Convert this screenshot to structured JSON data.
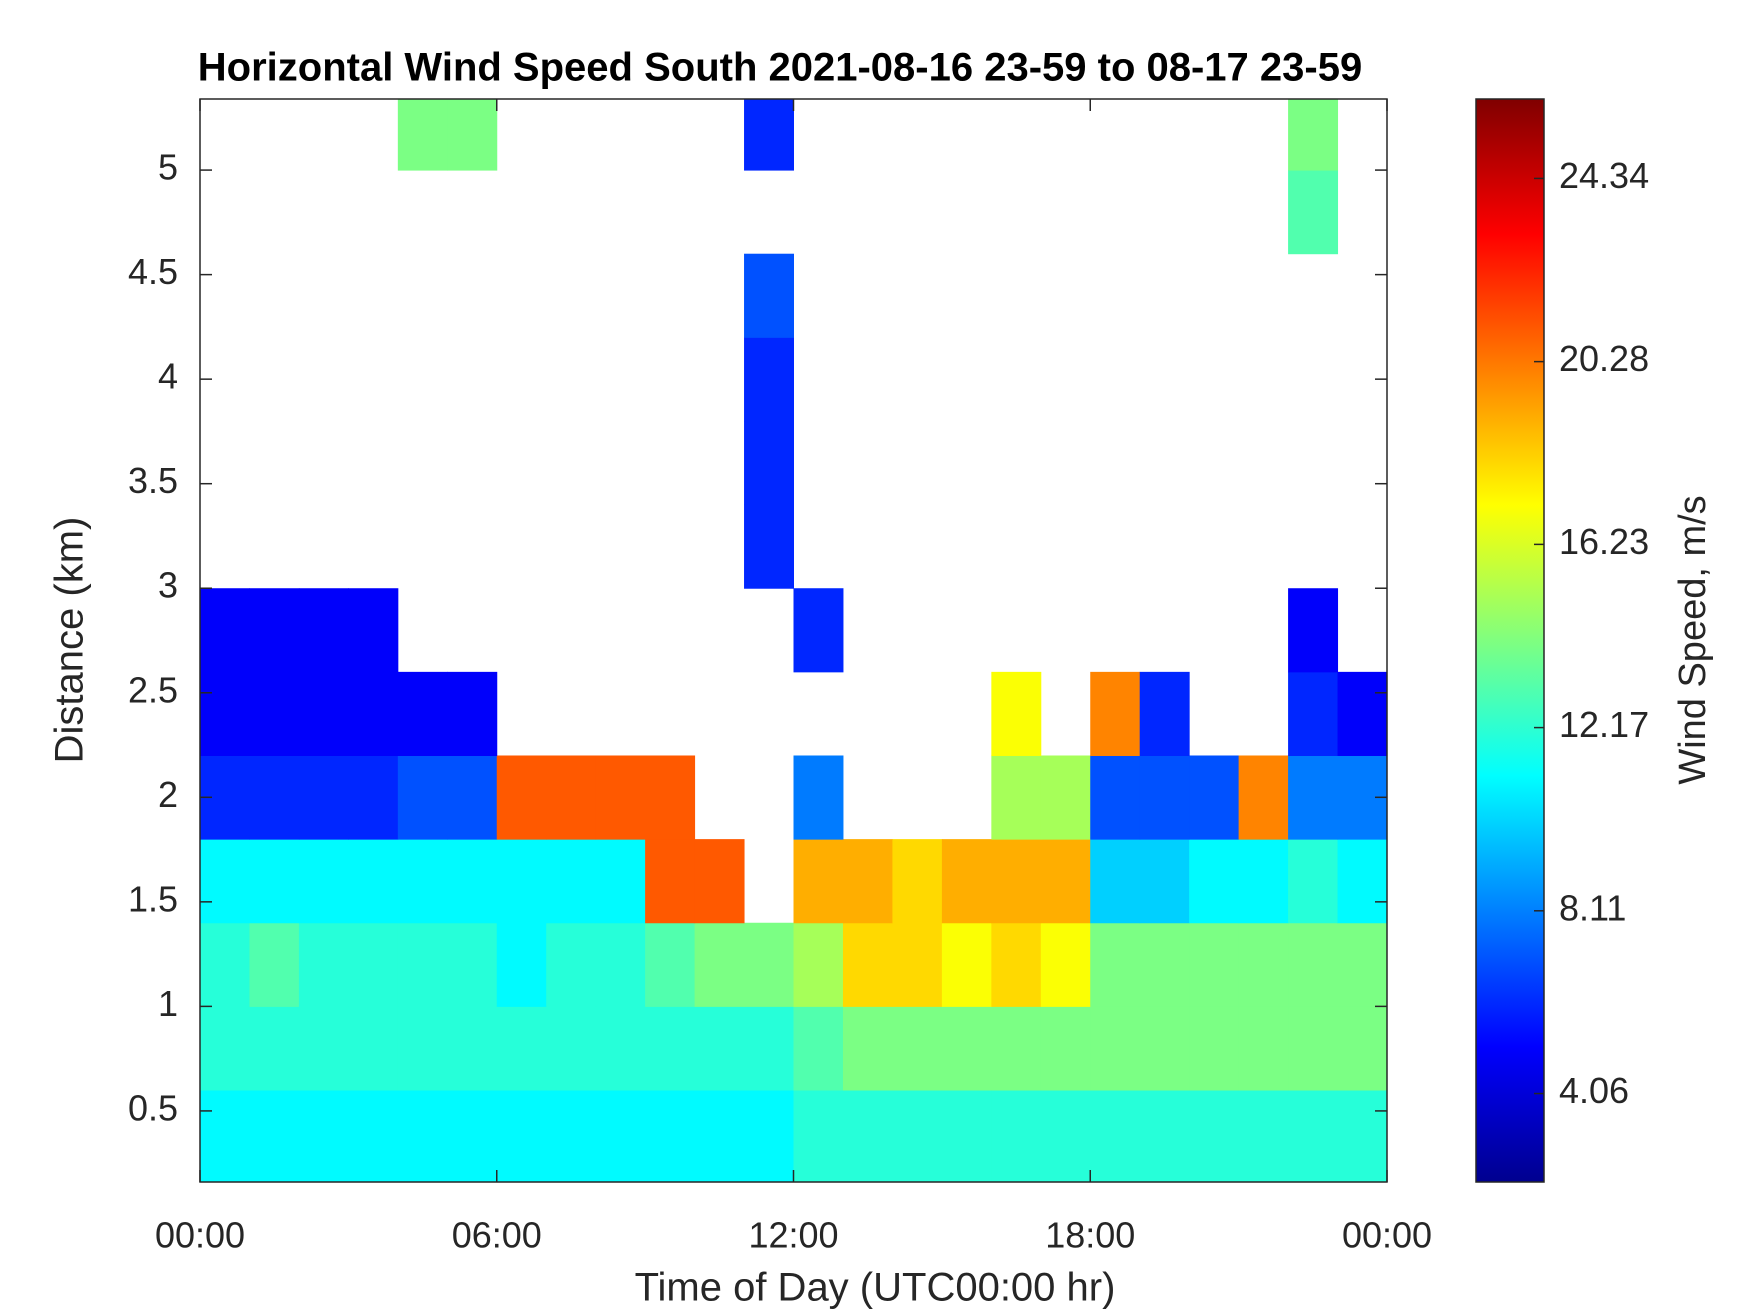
{
  "chart_data": {
    "type": "heatmap",
    "title": "Horizontal Wind Speed South 2021-08-16 23-59 to 08-17 23-59",
    "xlabel": "Time of Day (UTC00:00 hr)",
    "ylabel": "Distance (km)",
    "colorbar_label": "Wind Speed, m/s",
    "colormap": "jet",
    "x_edges": [
      0,
      1,
      2,
      3,
      4,
      5,
      6,
      7,
      8,
      9,
      10,
      11,
      12,
      13,
      14,
      15,
      16,
      17,
      18,
      19,
      20,
      21,
      22,
      23,
      24
    ],
    "y_edges": [
      0.16,
      0.6,
      1.0,
      1.4,
      1.8,
      2.2,
      2.6,
      3.0,
      3.4,
      3.8,
      4.2,
      4.6,
      5.0,
      5.34
    ],
    "z": [
      [
        11,
        11,
        11,
        11,
        11,
        11,
        11,
        11,
        11,
        11,
        11,
        11,
        12,
        12,
        12,
        12,
        12,
        12,
        12,
        12,
        12,
        12,
        12,
        12
      ],
      [
        12,
        12,
        12,
        12,
        12,
        12,
        12,
        12,
        12,
        12,
        12,
        12,
        13,
        14,
        14,
        14,
        14,
        14,
        14,
        14,
        14,
        14,
        14,
        14
      ],
      [
        12,
        13,
        12,
        12,
        12,
        12,
        11,
        12,
        12,
        13,
        14,
        14,
        15,
        18,
        18,
        17,
        18,
        17,
        14,
        14,
        14,
        14,
        14,
        14
      ],
      [
        11,
        11,
        11,
        11,
        11,
        11,
        11,
        11,
        11,
        21,
        21,
        null,
        19,
        19,
        18,
        19,
        19,
        19,
        10,
        10,
        11,
        11,
        12,
        11
      ],
      [
        6,
        6,
        6,
        6,
        7,
        7,
        21,
        21,
        21,
        21,
        null,
        null,
        8,
        null,
        null,
        null,
        15,
        15,
        7,
        7,
        7,
        20,
        8,
        8
      ],
      [
        5,
        5,
        5,
        5,
        5,
        5,
        null,
        null,
        null,
        null,
        null,
        null,
        null,
        null,
        null,
        null,
        17,
        null,
        20,
        6,
        null,
        null,
        6,
        5
      ],
      [
        5,
        5,
        5,
        5,
        null,
        null,
        null,
        null,
        null,
        null,
        null,
        null,
        6,
        null,
        null,
        null,
        null,
        null,
        null,
        null,
        null,
        null,
        5,
        null
      ],
      [
        null,
        null,
        null,
        null,
        null,
        null,
        null,
        null,
        null,
        null,
        null,
        6,
        null,
        null,
        null,
        null,
        null,
        null,
        null,
        null,
        null,
        null,
        null,
        null
      ],
      [
        null,
        null,
        null,
        null,
        null,
        null,
        null,
        null,
        null,
        null,
        null,
        6,
        null,
        null,
        null,
        null,
        null,
        null,
        null,
        null,
        null,
        null,
        null,
        null
      ],
      [
        null,
        null,
        null,
        null,
        null,
        null,
        null,
        null,
        null,
        null,
        null,
        6,
        null,
        null,
        null,
        null,
        null,
        null,
        null,
        null,
        null,
        null,
        null,
        null
      ],
      [
        null,
        null,
        null,
        null,
        null,
        null,
        null,
        null,
        null,
        null,
        null,
        7,
        null,
        null,
        null,
        null,
        null,
        null,
        null,
        null,
        null,
        null,
        null,
        null
      ],
      [
        null,
        null,
        null,
        null,
        null,
        null,
        null,
        null,
        null,
        null,
        null,
        null,
        null,
        null,
        null,
        null,
        null,
        null,
        null,
        null,
        null,
        null,
        13,
        null
      ],
      [
        null,
        null,
        null,
        null,
        14,
        14,
        null,
        null,
        null,
        null,
        null,
        6,
        null,
        null,
        null,
        null,
        null,
        null,
        null,
        null,
        null,
        null,
        14,
        null
      ]
    ],
    "xlim": [
      0,
      24
    ],
    "xticks": [
      {
        "value": 0,
        "label": "00:00"
      },
      {
        "value": 6,
        "label": "06:00"
      },
      {
        "value": 12,
        "label": "12:00"
      },
      {
        "value": 18,
        "label": "18:00"
      },
      {
        "value": 24,
        "label": "00:00"
      }
    ],
    "ylim": [
      0.16,
      5.34
    ],
    "yticks": [
      0.5,
      1,
      1.5,
      2,
      2.5,
      3,
      3.5,
      4,
      4.5,
      5
    ],
    "clim": [
      2.1,
      26.1
    ],
    "cticks": [
      4.06,
      8.11,
      12.17,
      16.23,
      20.28,
      24.34
    ]
  }
}
